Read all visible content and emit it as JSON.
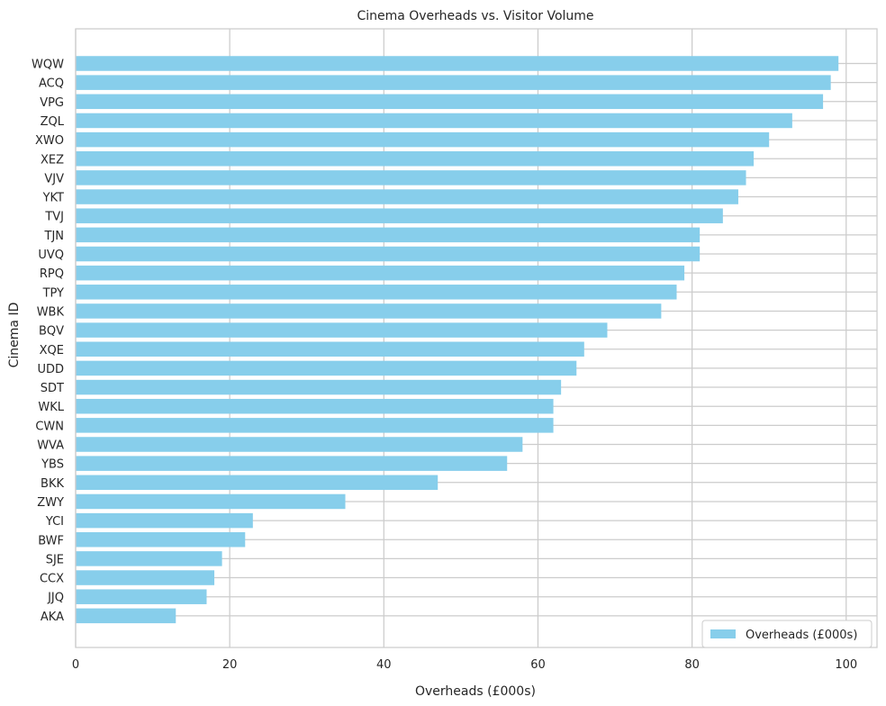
{
  "chart_data": {
    "type": "bar",
    "orientation": "horizontal",
    "title": "Cinema Overheads vs. Visitor Volume",
    "xlabel": "Overheads (£000s)",
    "ylabel": "Cinema ID",
    "xlim": [
      0,
      104
    ],
    "xticks": [
      0,
      20,
      40,
      60,
      80,
      100
    ],
    "grid": true,
    "legend_position": "bottom-right",
    "categories": [
      "WQW",
      "ACQ",
      "VPG",
      "ZQL",
      "XWO",
      "XEZ",
      "VJV",
      "YKT",
      "TVJ",
      "TJN",
      "UVQ",
      "RPQ",
      "TPY",
      "WBK",
      "BQV",
      "XQE",
      "UDD",
      "SDT",
      "WKL",
      "CWN",
      "WVA",
      "YBS",
      "BKK",
      "ZWY",
      "YCI",
      "BWF",
      "SJE",
      "CCX",
      "JJQ",
      "AKA"
    ],
    "series": [
      {
        "name": "Overheads (£000s)",
        "color": "#87ceeb",
        "values": [
          99,
          98,
          97,
          93,
          90,
          88,
          87,
          86,
          84,
          81,
          81,
          79,
          78,
          76,
          69,
          66,
          65,
          63,
          62,
          62,
          58,
          56,
          47,
          35,
          23,
          22,
          19,
          18,
          17,
          13
        ]
      }
    ],
    "colors": {
      "grid": "#cccccc",
      "axes": "#cccccc",
      "text": "#262626"
    }
  }
}
